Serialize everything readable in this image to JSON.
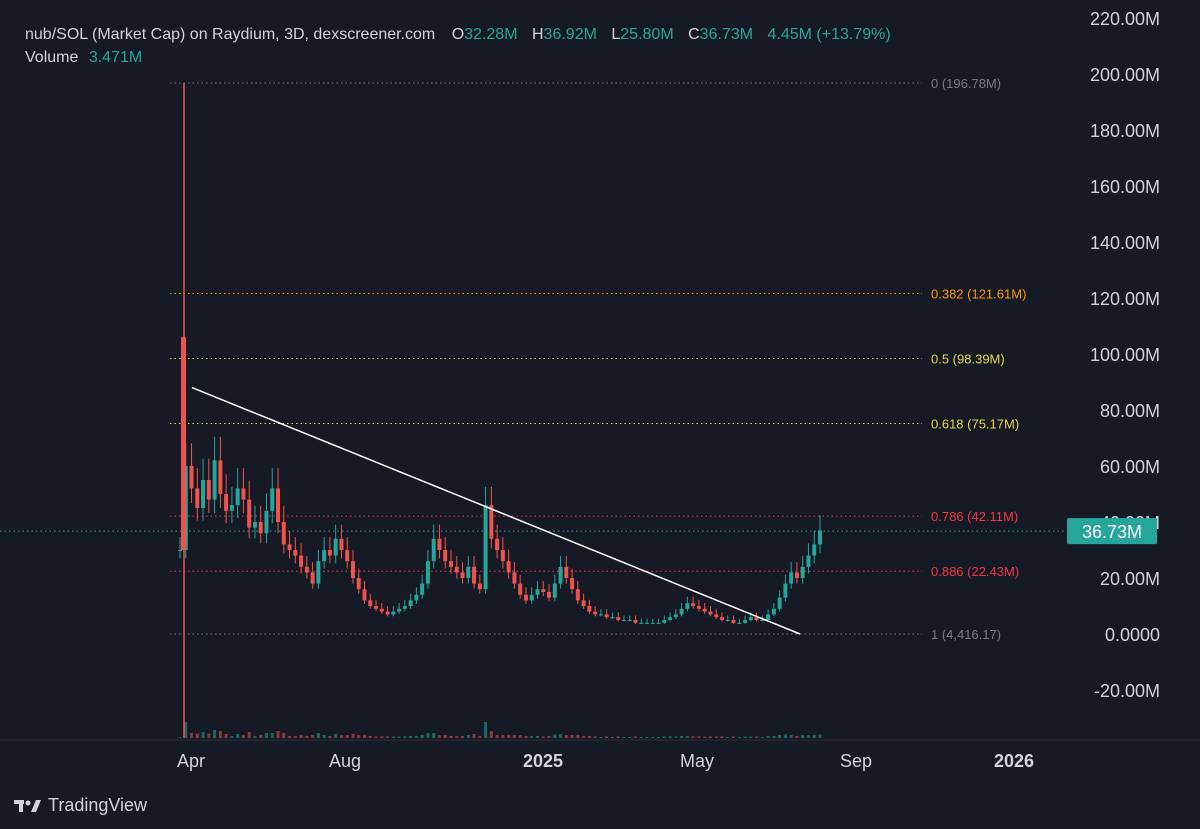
{
  "legend": {
    "title": "nub/SOL (Market Cap) on Raydium, 3D, dexscreener.com",
    "o_label": "O",
    "o_value": "32.28M",
    "h_label": "H",
    "h_value": "36.92M",
    "l_label": "L",
    "l_value": "25.80M",
    "c_label": "C",
    "c_value": "36.73M",
    "change": "4.45M (+13.79%)",
    "volume_label": "Volume",
    "volume_value": "3.471M"
  },
  "branding": {
    "name": "TradingView",
    "icon": "tradingview-logo-icon"
  },
  "colors": {
    "up": "#26a69a",
    "down": "#ef5350",
    "background": "#161a25",
    "trendline": "#ffffff"
  },
  "chart_data": {
    "type": "candlestick",
    "y_axis": {
      "min": -40000000,
      "max": 220000000,
      "ticks": [
        "220.00M",
        "200.00M",
        "180.00M",
        "160.00M",
        "140.00M",
        "120.00M",
        "100.00M",
        "80.00M",
        "60.00M",
        "40.00M",
        "20.00M",
        "0.0000",
        "-20.00M"
      ],
      "tick_values": [
        220000000,
        200000000,
        180000000,
        160000000,
        140000000,
        120000000,
        100000000,
        80000000,
        60000000,
        40000000,
        20000000,
        0,
        -20000000
      ]
    },
    "x_axis": {
      "ticks": [
        "Apr",
        "Aug",
        "2025",
        "May",
        "Sep",
        "2026"
      ],
      "bold": [
        false,
        false,
        true,
        false,
        false,
        true
      ]
    },
    "last_price_label": "36.73M",
    "last_price": 36730000,
    "fib_levels": [
      {
        "label": "0 (196.78M)",
        "value": 196780000,
        "color": "#787b86"
      },
      {
        "label": "0.382 (121.61M)",
        "value": 121610000,
        "color": "#ff9800"
      },
      {
        "label": "0.5 (98.39M)",
        "value": 98390000,
        "color": "#e5d84a"
      },
      {
        "label": "0.618 (75.17M)",
        "value": 75170000,
        "color": "#e5d84a"
      },
      {
        "label": "0.786 (42.11M)",
        "value": 42110000,
        "color": "#f23645"
      },
      {
        "label": "0.886 (22.43M)",
        "value": 22430000,
        "color": "#f23645"
      },
      {
        "label": "1 (4,416.17)",
        "value": 4416,
        "color": "#787b86"
      }
    ],
    "trendline": {
      "from": [
        0.0,
        88000000
      ],
      "to": [
        1.0,
        0
      ]
    },
    "series_approx_close": [
      30,
      60,
      52,
      45,
      55,
      48,
      62,
      50,
      44,
      46,
      52,
      48,
      38,
      40,
      36,
      44,
      52,
      40,
      32,
      30,
      28,
      24,
      22,
      18,
      26,
      30,
      28,
      34,
      30,
      26,
      20,
      16,
      12,
      10,
      9,
      8,
      7,
      8,
      9,
      10,
      12,
      14,
      18,
      26,
      34,
      30,
      26,
      24,
      22,
      20,
      24,
      18,
      16,
      46,
      34,
      30,
      26,
      22,
      18,
      14,
      12,
      14,
      16,
      15,
      13,
      18,
      24,
      20,
      16,
      12,
      10,
      8,
      7,
      7,
      6,
      6,
      5,
      5,
      5,
      4,
      4,
      4,
      4,
      4,
      5,
      6,
      7,
      9,
      11,
      10,
      9,
      8,
      7,
      6,
      5,
      5,
      4,
      4,
      5,
      6,
      5,
      5,
      7,
      9,
      13,
      18,
      22,
      20,
      24,
      28,
      32,
      37
    ]
  }
}
